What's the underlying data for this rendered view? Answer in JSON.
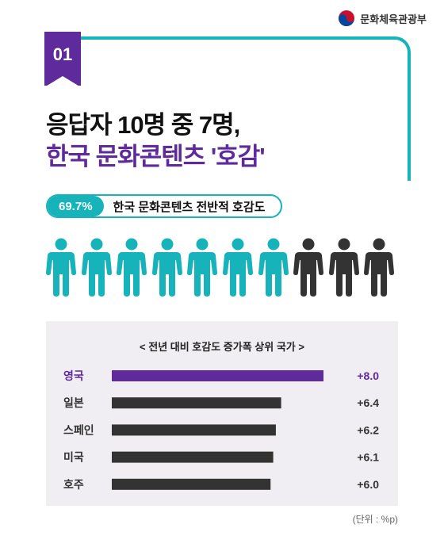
{
  "header": {
    "ministry": "문화체육관광부"
  },
  "badge": {
    "number": "01"
  },
  "title": {
    "line1": "응답자 10명 중 7명,",
    "line2": "한국 문화콘텐츠 '호감'"
  },
  "stat": {
    "value": "69.7%",
    "label": "한국 문화콘텐츠 전반적 호감도"
  },
  "people": {
    "total": 10,
    "highlighted": 7,
    "highlight_color": "#16b3ba",
    "other_color": "#333333"
  },
  "colors": {
    "teal": "#16b3ba",
    "purple": "#5e2a9c",
    "bar_dark": "#333333",
    "chart_bg": "#f0eef3"
  },
  "chart_data": {
    "type": "bar",
    "orientation": "horizontal",
    "title": "< 전년 대비 호감도 증가폭 상위 국가 >",
    "categories": [
      "영국",
      "일본",
      "스페인",
      "미국",
      "호주"
    ],
    "values": [
      8.0,
      6.4,
      6.2,
      6.1,
      6.0
    ],
    "value_labels": [
      "+8.0",
      "+6.4",
      "+6.2",
      "+6.1",
      "+6.0"
    ],
    "highlight_index": 0,
    "unit": "(단위 : %p)"
  }
}
